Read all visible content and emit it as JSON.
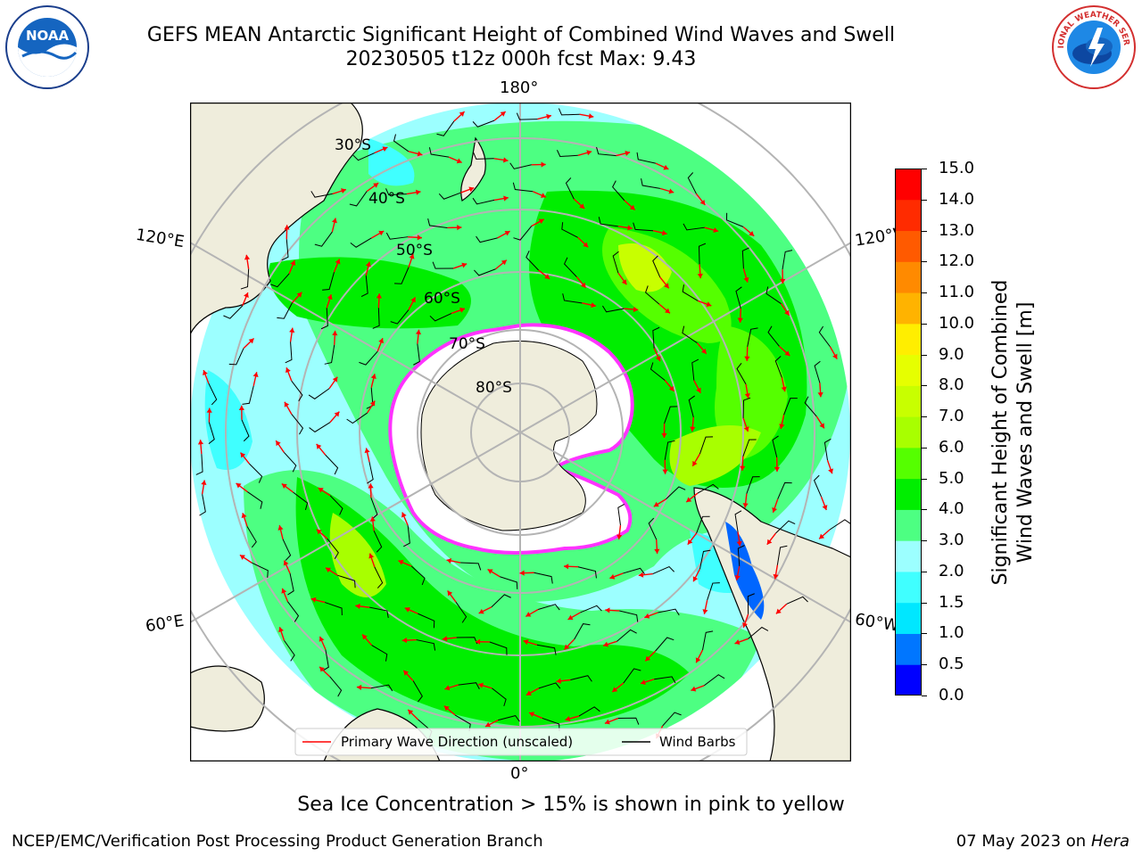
{
  "title": {
    "line1": "GEFS MEAN Antarctic Significant Height of Combined Wind Waves and Swell",
    "line2": "20230505 t12z 000h fcst   Max: 9.43"
  },
  "map": {
    "projection": "south-polar-stereographic",
    "lon_labels": {
      "top": "180°",
      "bottom": "0°",
      "upper_left": "120°E",
      "lower_left": "60°E",
      "upper_right": "120°W",
      "lower_right": "60°W"
    },
    "lat_labels": [
      "30°S",
      "40°S",
      "50°S",
      "60°S",
      "70°S",
      "80°S"
    ],
    "colors": {
      "land": "#efeddc",
      "ice_shelf": "#ffffff",
      "sea_ice_edge": "#ff33ff",
      "grid": "#b4b4b4"
    },
    "legend": {
      "primary_wave": "Primary Wave Direction (unscaled)",
      "wind_barbs": "Wind Barbs",
      "primary_wave_color": "#ff0000",
      "wind_barbs_color": "#000000"
    }
  },
  "colorbar": {
    "label_line1": "Significant Height of Combined",
    "label_line2": "Wind Waves and Swell [m]",
    "ticks": [
      "0.0",
      "0.5",
      "1.0",
      "1.5",
      "2.0",
      "3.0",
      "4.0",
      "5.0",
      "6.0",
      "7.0",
      "8.0",
      "9.0",
      "10.0",
      "11.0",
      "12.0",
      "13.0",
      "14.0",
      "15.0"
    ],
    "colors": [
      "#0000ff",
      "#0076ff",
      "#00e7ff",
      "#40ffff",
      "#9cffff",
      "#4dff82",
      "#00ee00",
      "#55ff00",
      "#a8ff00",
      "#c8ff00",
      "#e6ff00",
      "#ffee00",
      "#ffb300",
      "#ff8a00",
      "#ff5a00",
      "#ff2b00",
      "#ff0000"
    ]
  },
  "sea_ice_note": "Sea Ice Concentration > 15% is shown in pink to yellow",
  "footer": {
    "left": "NCEP/EMC/Verification Post Processing Product Generation Branch",
    "right_date": "07 May 2023 on",
    "right_host": "Hera"
  },
  "logos": {
    "noaa_text": "NOAA",
    "nws_text": "NATIONAL WEATHER SERVICE"
  }
}
